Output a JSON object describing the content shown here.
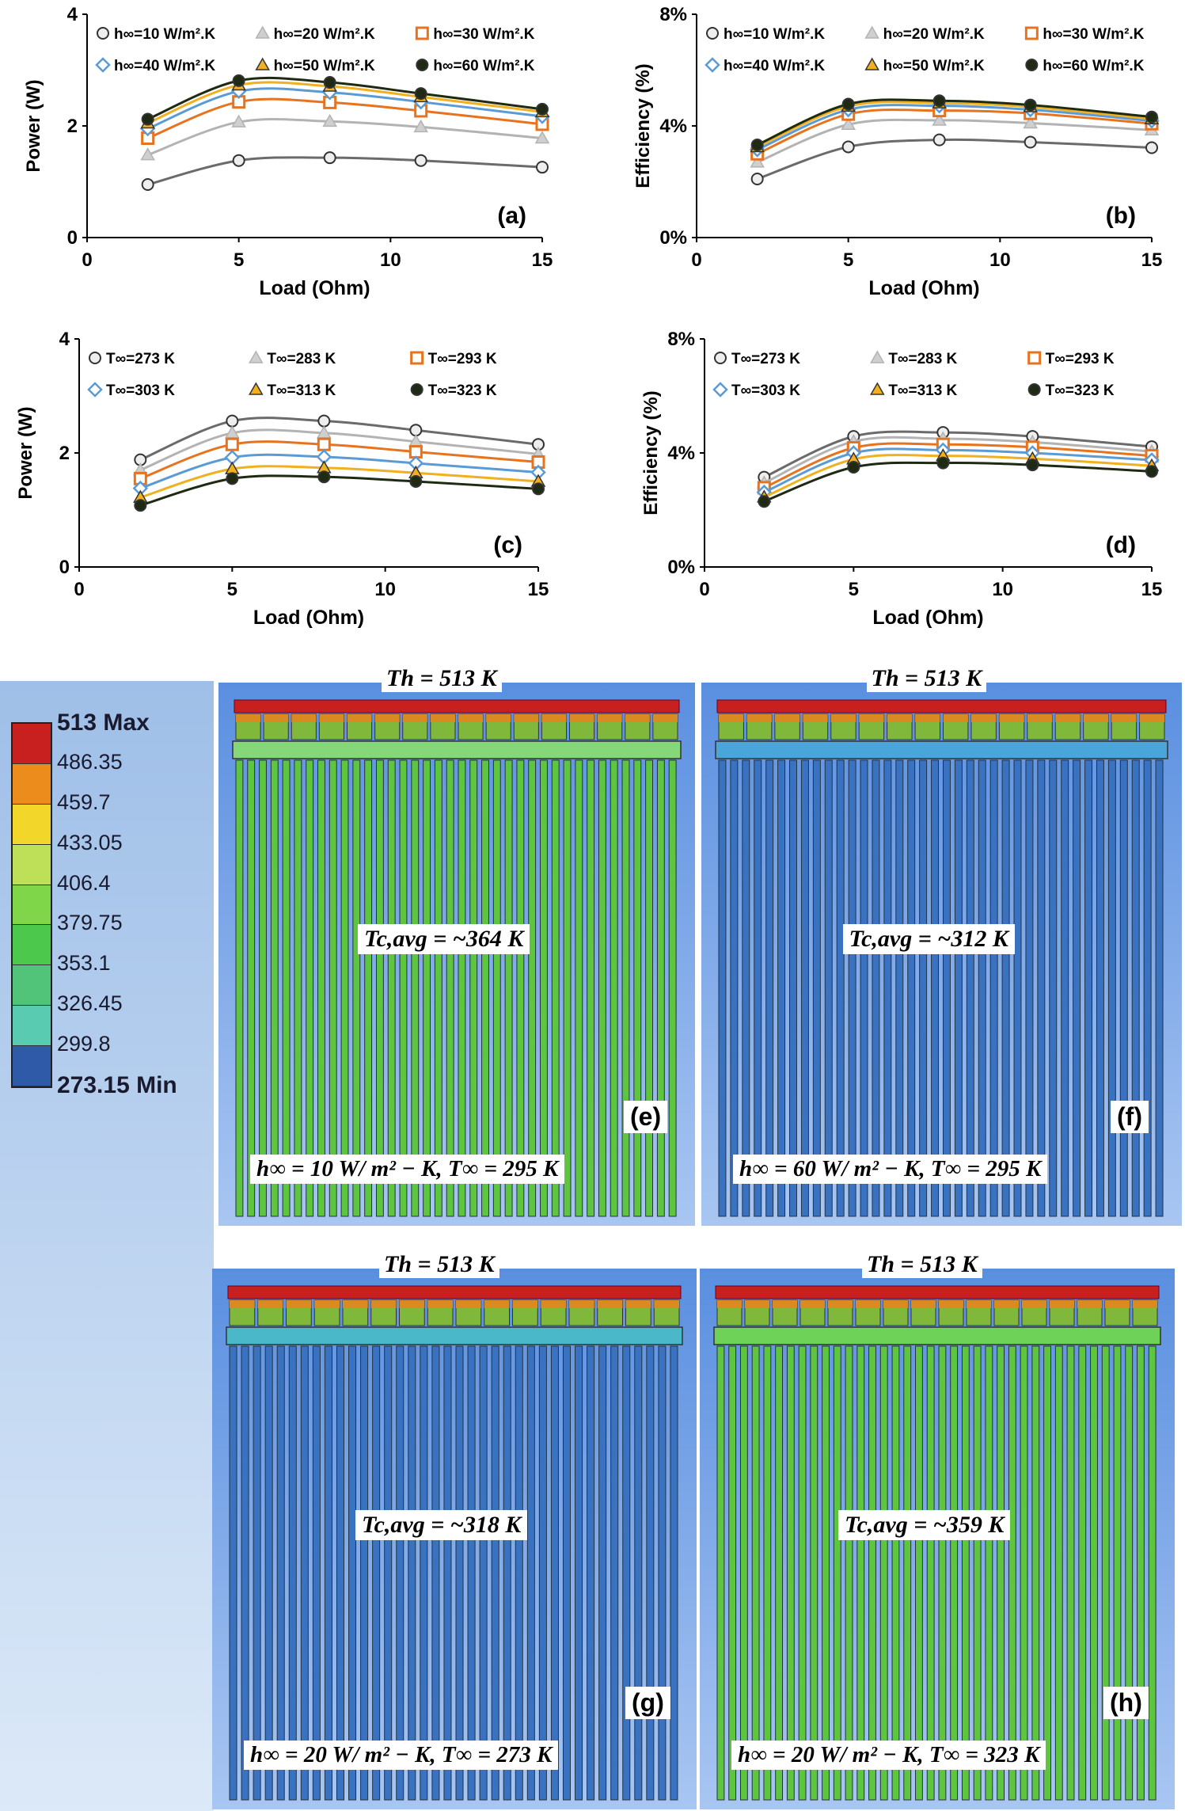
{
  "charts": {
    "x_label": "Load (Ohm)",
    "power_label": "Power (W)",
    "efficiency_label": "Efficiency (%)"
  },
  "chart_data": [
    {
      "id": "a",
      "type": "line",
      "panel_label": "(a)",
      "xlabel": "Load (Ohm)",
      "ylabel": "Power (W)",
      "xlim": [
        0,
        15
      ],
      "ylim": [
        0,
        4
      ],
      "xticks": [
        0,
        5,
        10,
        15
      ],
      "yticks": [
        0,
        2,
        4
      ],
      "x": [
        2,
        5,
        8,
        11,
        15
      ],
      "series": [
        {
          "name": "h∞=10 W/m².K",
          "values": [
            0.95,
            1.38,
            1.43,
            1.38,
            1.26
          ]
        },
        {
          "name": "h∞=20 W/m².K",
          "values": [
            1.48,
            2.07,
            2.08,
            1.98,
            1.78
          ]
        },
        {
          "name": "h∞=30 W/m².K",
          "values": [
            1.78,
            2.43,
            2.42,
            2.27,
            2.03
          ]
        },
        {
          "name": "h∞=40 W/m².K",
          "values": [
            1.95,
            2.62,
            2.6,
            2.43,
            2.17
          ]
        },
        {
          "name": "h∞=50 W/m².K",
          "values": [
            2.05,
            2.73,
            2.71,
            2.52,
            2.25
          ]
        },
        {
          "name": "h∞=60 W/m².K",
          "values": [
            2.12,
            2.81,
            2.78,
            2.58,
            2.3
          ]
        }
      ]
    },
    {
      "id": "b",
      "type": "line",
      "panel_label": "(b)",
      "xlabel": "Load (Ohm)",
      "ylabel": "Efficiency (%)",
      "xlim": [
        0,
        15
      ],
      "ylim": [
        0,
        8
      ],
      "xticks": [
        0,
        5,
        10,
        15
      ],
      "yticks": [
        0,
        4,
        8
      ],
      "x": [
        2,
        5,
        8,
        11,
        15
      ],
      "series": [
        {
          "name": "h∞=10 W/m².K",
          "values": [
            2.1,
            3.25,
            3.5,
            3.42,
            3.22
          ]
        },
        {
          "name": "h∞=20 W/m².K",
          "values": [
            2.7,
            4.05,
            4.2,
            4.1,
            3.85
          ]
        },
        {
          "name": "h∞=30 W/m².K",
          "values": [
            3.0,
            4.42,
            4.55,
            4.45,
            4.08
          ]
        },
        {
          "name": "h∞=40 W/m².K",
          "values": [
            3.15,
            4.58,
            4.72,
            4.58,
            4.18
          ]
        },
        {
          "name": "h∞=50 W/m².K",
          "values": [
            3.25,
            4.7,
            4.82,
            4.68,
            4.25
          ]
        },
        {
          "name": "h∞=60 W/m².K",
          "values": [
            3.32,
            4.78,
            4.9,
            4.75,
            4.32
          ]
        }
      ]
    },
    {
      "id": "c",
      "type": "line",
      "panel_label": "(c)",
      "xlabel": "Load (Ohm)",
      "ylabel": "Power (W)",
      "xlim": [
        0,
        15
      ],
      "ylim": [
        0,
        4
      ],
      "xticks": [
        0,
        5,
        10,
        15
      ],
      "yticks": [
        0,
        2,
        4
      ],
      "x": [
        2,
        5,
        8,
        11,
        15
      ],
      "series": [
        {
          "name": "T∞=273 K",
          "values": [
            1.88,
            2.56,
            2.56,
            2.4,
            2.15
          ]
        },
        {
          "name": "T∞=283 K",
          "values": [
            1.7,
            2.35,
            2.35,
            2.2,
            1.98
          ]
        },
        {
          "name": "T∞=293 K",
          "values": [
            1.55,
            2.15,
            2.15,
            2.02,
            1.84
          ]
        },
        {
          "name": "T∞=303 K",
          "values": [
            1.38,
            1.92,
            1.93,
            1.82,
            1.66
          ]
        },
        {
          "name": "T∞=313 K",
          "values": [
            1.22,
            1.72,
            1.74,
            1.65,
            1.5
          ]
        },
        {
          "name": "T∞=323 K",
          "values": [
            1.08,
            1.55,
            1.58,
            1.5,
            1.37
          ]
        }
      ]
    },
    {
      "id": "d",
      "type": "line",
      "panel_label": "(d)",
      "xlabel": "Load (Ohm)",
      "ylabel": "Efficiency (%)",
      "xlim": [
        0,
        15
      ],
      "ylim": [
        0,
        8
      ],
      "xticks": [
        0,
        5,
        10,
        15
      ],
      "yticks": [
        0,
        4,
        8
      ],
      "x": [
        2,
        5,
        8,
        11,
        15
      ],
      "series": [
        {
          "name": "T∞=273 K",
          "values": [
            3.15,
            4.58,
            4.72,
            4.58,
            4.22
          ]
        },
        {
          "name": "T∞=283 K",
          "values": [
            2.95,
            4.4,
            4.5,
            4.38,
            4.05
          ]
        },
        {
          "name": "T∞=293 K",
          "values": [
            2.78,
            4.18,
            4.3,
            4.2,
            3.9
          ]
        },
        {
          "name": "T∞=303 K",
          "values": [
            2.62,
            4.0,
            4.1,
            4.0,
            3.75
          ]
        },
        {
          "name": "T∞=313 K",
          "values": [
            2.45,
            3.78,
            3.9,
            3.8,
            3.55
          ]
        },
        {
          "name": "T∞=323 K",
          "values": [
            2.3,
            3.5,
            3.65,
            3.58,
            3.35
          ]
        }
      ]
    }
  ],
  "series_colors": [
    "#6b6b6b",
    "#b3b3b3",
    "#e8731f",
    "#5b9bd5",
    "#f0b020",
    "#1e2a12"
  ],
  "series_markers": [
    "circle",
    "triangle",
    "square",
    "diamond",
    "triangle",
    "circle"
  ],
  "colorbar": {
    "labels": [
      "513 Max",
      "486.35",
      "459.7",
      "433.05",
      "406.4",
      "379.75",
      "353.1",
      "326.45",
      "299.8",
      "273.15 Min"
    ],
    "colors": [
      "#c8201e",
      "#ec8c1c",
      "#f2d62a",
      "#bde058",
      "#7fd648",
      "#4cc84c",
      "#52c47a",
      "#58cbb0",
      "#2e5aa8"
    ]
  },
  "sims": [
    {
      "id": "e",
      "label": "(e)",
      "th": "Th = 513 K",
      "tc": "Tc,avg = ~364 K",
      "cond": "h∞ = 10 W/ m² − K, T∞ = 295 K",
      "fin_color": "#5ec63e",
      "base_color": "#86d67a"
    },
    {
      "id": "f",
      "label": "(f)",
      "th": "Th = 513 K",
      "tc": "Tc,avg = ~312 K",
      "cond": "h∞ = 60 W/ m² − K, T∞ = 295 K",
      "fin_color": "#3a72c2",
      "base_color": "#4aa6d8"
    },
    {
      "id": "g",
      "label": "(g)",
      "th": "Th = 513 K",
      "tc": "Tc,avg = ~318 K",
      "cond": "h∞ = 20 W/ m² − K, T∞ = 273 K",
      "fin_color": "#3a72c2",
      "base_color": "#4ab8c8"
    },
    {
      "id": "h",
      "label": "(h)",
      "th": "Th = 513 K",
      "tc": "Tc,avg = ~359 K",
      "cond": "h∞ = 20 W/ m² − K, T∞ = 323 K",
      "fin_color": "#5ec63e",
      "base_color": "#6ed258"
    }
  ]
}
